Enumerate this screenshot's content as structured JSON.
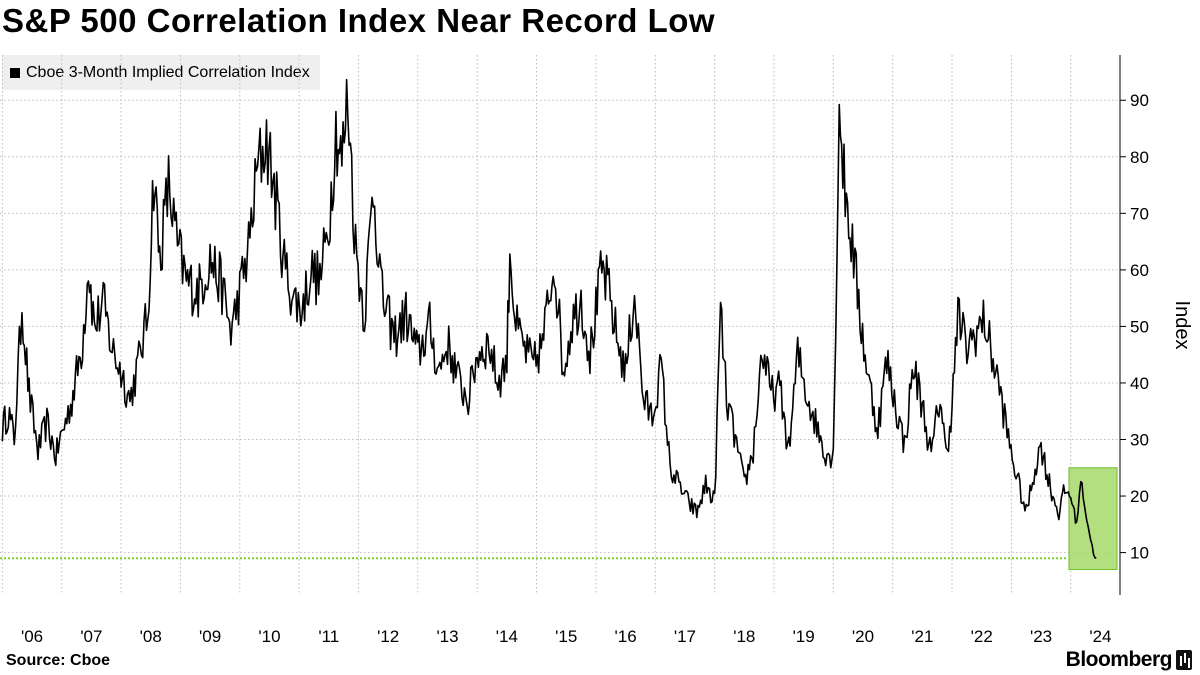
{
  "chart_data": {
    "type": "line",
    "title": "S&P 500 Correlation Index Near Record Low",
    "series": [
      {
        "name": "Cboe 3-Month Implied Correlation Index",
        "color": "#000000",
        "points": [
          [
            2006.0,
            32
          ],
          [
            2006.1,
            35
          ],
          [
            2006.2,
            30
          ],
          [
            2006.33,
            54
          ],
          [
            2006.45,
            38
          ],
          [
            2006.6,
            28
          ],
          [
            2006.75,
            33
          ],
          [
            2006.9,
            27
          ],
          [
            2007.0,
            31
          ],
          [
            2007.15,
            36
          ],
          [
            2007.35,
            47
          ],
          [
            2007.45,
            61
          ],
          [
            2007.55,
            50
          ],
          [
            2007.7,
            54
          ],
          [
            2007.85,
            46
          ],
          [
            2008.0,
            42
          ],
          [
            2008.15,
            37
          ],
          [
            2008.3,
            44
          ],
          [
            2008.45,
            52
          ],
          [
            2008.55,
            77
          ],
          [
            2008.65,
            62
          ],
          [
            2008.8,
            75
          ],
          [
            2008.95,
            64
          ],
          [
            2009.1,
            58
          ],
          [
            2009.3,
            56
          ],
          [
            2009.5,
            62
          ],
          [
            2009.7,
            57
          ],
          [
            2009.85,
            49
          ],
          [
            2010.0,
            56
          ],
          [
            2010.15,
            64
          ],
          [
            2010.3,
            78
          ],
          [
            2010.45,
            83
          ],
          [
            2010.6,
            73
          ],
          [
            2010.75,
            61
          ],
          [
            2010.9,
            55
          ],
          [
            2011.05,
            53
          ],
          [
            2011.2,
            60
          ],
          [
            2011.35,
            58
          ],
          [
            2011.5,
            68
          ],
          [
            2011.62,
            85
          ],
          [
            2011.72,
            79
          ],
          [
            2011.82,
            91
          ],
          [
            2011.95,
            64
          ],
          [
            2012.1,
            52
          ],
          [
            2012.25,
            75
          ],
          [
            2012.4,
            55
          ],
          [
            2012.6,
            48
          ],
          [
            2012.8,
            52
          ],
          [
            2013.0,
            45
          ],
          [
            2013.2,
            50
          ],
          [
            2013.35,
            42
          ],
          [
            2013.5,
            47
          ],
          [
            2013.7,
            40
          ],
          [
            2013.85,
            37
          ],
          [
            2014.0,
            45
          ],
          [
            2014.2,
            47
          ],
          [
            2014.35,
            40
          ],
          [
            2014.5,
            44
          ],
          [
            2014.55,
            64
          ],
          [
            2014.65,
            50
          ],
          [
            2014.8,
            46
          ],
          [
            2014.95,
            43
          ],
          [
            2015.1,
            47
          ],
          [
            2015.3,
            62
          ],
          [
            2015.45,
            42
          ],
          [
            2015.6,
            51
          ],
          [
            2015.75,
            55
          ],
          [
            2015.9,
            45
          ],
          [
            2016.1,
            60
          ],
          [
            2016.2,
            57
          ],
          [
            2016.35,
            48
          ],
          [
            2016.5,
            42
          ],
          [
            2016.65,
            56
          ],
          [
            2016.8,
            37
          ],
          [
            2016.95,
            34
          ],
          [
            2017.1,
            43
          ],
          [
            2017.25,
            25
          ],
          [
            2017.4,
            22
          ],
          [
            2017.55,
            19
          ],
          [
            2017.7,
            17
          ],
          [
            2017.85,
            22
          ],
          [
            2018.0,
            19
          ],
          [
            2018.1,
            53
          ],
          [
            2018.2,
            37
          ],
          [
            2018.35,
            30
          ],
          [
            2018.5,
            22
          ],
          [
            2018.65,
            28
          ],
          [
            2018.8,
            46
          ],
          [
            2018.95,
            38
          ],
          [
            2019.1,
            39
          ],
          [
            2019.25,
            28
          ],
          [
            2019.4,
            45
          ],
          [
            2019.55,
            38
          ],
          [
            2019.7,
            33
          ],
          [
            2019.85,
            28
          ],
          [
            2020.0,
            27
          ],
          [
            2020.1,
            89
          ],
          [
            2020.18,
            76
          ],
          [
            2020.3,
            66
          ],
          [
            2020.45,
            52
          ],
          [
            2020.6,
            40
          ],
          [
            2020.75,
            32
          ],
          [
            2020.9,
            44
          ],
          [
            2021.05,
            36
          ],
          [
            2021.2,
            29
          ],
          [
            2021.35,
            43
          ],
          [
            2021.5,
            36
          ],
          [
            2021.65,
            27
          ],
          [
            2021.8,
            38
          ],
          [
            2021.9,
            27
          ],
          [
            2022.0,
            36
          ],
          [
            2022.1,
            52
          ],
          [
            2022.25,
            46
          ],
          [
            2022.4,
            49
          ],
          [
            2022.55,
            51
          ],
          [
            2022.65,
            46
          ],
          [
            2022.8,
            39
          ],
          [
            2022.95,
            30
          ],
          [
            2023.1,
            23
          ],
          [
            2023.25,
            17
          ],
          [
            2023.4,
            25
          ],
          [
            2023.5,
            29
          ],
          [
            2023.6,
            24
          ],
          [
            2023.7,
            20
          ],
          [
            2023.8,
            17
          ],
          [
            2023.9,
            21
          ],
          [
            2024.0,
            20
          ],
          [
            2024.1,
            15
          ],
          [
            2024.17,
            23
          ],
          [
            2024.27,
            16
          ],
          [
            2024.36,
            11
          ],
          [
            2024.43,
            9
          ]
        ]
      }
    ],
    "x_tick_labels": [
      "'06",
      "'07",
      "'08",
      "'09",
      "'10",
      "'11",
      "'12",
      "'13",
      "'14",
      "'15",
      "'16",
      "'17",
      "'18",
      "'19",
      "'20",
      "'21",
      "'22",
      "'23",
      "'24"
    ],
    "xlim": [
      2005.96,
      2024.83
    ],
    "y_ticks": [
      10,
      20,
      30,
      40,
      50,
      60,
      70,
      80,
      90
    ],
    "ylim": [
      2.5,
      98
    ],
    "ylabel": "Index",
    "xlabel": "",
    "grid": true,
    "legend_position": "top-left",
    "reference_line": {
      "value": 9,
      "color": "#7bd22c",
      "style": "dotted"
    },
    "highlight_box": {
      "x": [
        2023.97,
        2024.78
      ],
      "y": [
        7,
        25
      ],
      "fill": "#a6d96a",
      "stroke": "#6fbf2a"
    }
  },
  "legend": {
    "label": "Cboe 3-Month Implied Correlation Index",
    "swatch_color": "#000000"
  },
  "footer": {
    "source": "Source: Cboe",
    "brand": "Bloomberg"
  }
}
